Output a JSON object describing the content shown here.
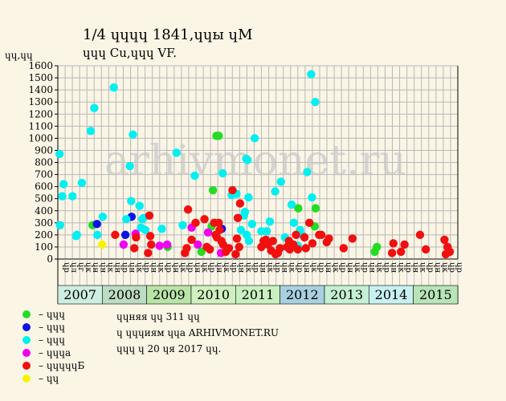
{
  "title": "1/4 ɥɥɥɥ 1841,ɥɥы ɥM",
  "subtitle": "ɥɥɥ Cu,ɥɥɥ VF.",
  "y_unit_label": "ɥɥ,ɥɥ",
  "watermark": "arhivmonet.ru",
  "footer": {
    "line1": "ɥɥняя ɥɥ 311 ɥɥ",
    "line2": "ɥ ɥɥɥиям ɥɥa ARHIVMONET.RU",
    "line3": "ɥɥɥ ɥ 20 ɥя 2017 ɥɥ."
  },
  "legend": [
    {
      "label": "– ɥɥɥ",
      "color": "#22dd22",
      "series": "green"
    },
    {
      "label": "– ɥɥɥ",
      "color": "#0a14e6",
      "series": "blue"
    },
    {
      "label": "– ɥɥɥ",
      "color": "#00f0f0",
      "series": "cyan"
    },
    {
      "label": "– ɥɥɥa",
      "color": "#f000f0",
      "series": "magenta"
    },
    {
      "label": "– ɥɥɥɥɥБ",
      "color": "#f01010",
      "series": "red"
    },
    {
      "label": "– ɥɥ",
      "color": "#f5f500",
      "series": "yellow"
    }
  ],
  "chart_data": {
    "type": "scatter",
    "y_ticks": [
      0,
      100,
      200,
      300,
      400,
      500,
      600,
      700,
      800,
      900,
      1000,
      1100,
      1200,
      1300,
      1400,
      1500,
      1600
    ],
    "ylim": [
      0,
      1600
    ],
    "xlim": [
      2007.0,
      2016.0
    ],
    "years": [
      {
        "label": "2007",
        "color": "#cdeee0"
      },
      {
        "label": "2008",
        "color": "#bcdcc4"
      },
      {
        "label": "2009",
        "color": "#b8e4a8"
      },
      {
        "label": "2010",
        "color": "#d0f0c0"
      },
      {
        "label": "2011",
        "color": "#c8f0c0"
      },
      {
        "label": "2012",
        "color": "#a8d0e0"
      },
      {
        "label": "2013",
        "color": "#c4f0d4"
      },
      {
        "label": "2014",
        "color": "#c8f0f0"
      },
      {
        "label": "2015",
        "color": "#b8e4b8"
      }
    ],
    "month_labels": [
      "ɥр",
      "ɥл",
      "ɥг",
      "ɥк",
      "ɥн",
      "ɥн",
      "ɥк",
      "ɥн",
      "ɥр",
      "ɥн",
      "ɥк",
      "ɥр",
      "ɥн",
      "ɥк",
      "ɥр",
      "ɥн",
      "ɥк",
      "ɥр",
      "ɥн",
      "ɥк",
      "ɥр",
      "ɥн",
      "ɥк",
      "ɥр",
      "ɥн",
      "ɥк",
      "ɥр",
      "ɥн",
      "ɥк",
      "ɥр",
      "ɥн",
      "ɥк",
      "ɥр",
      "ɥн",
      "ɥк",
      "ɥр",
      "ɥн",
      "ɥк",
      "ɥр",
      "ɥн",
      "ɥк",
      "ɥр",
      "ɥн",
      "ɥк",
      "ɥр",
      "ɥн",
      "ɥк",
      "ɥр",
      "ɥн",
      "ɥк",
      "ɥр",
      "ɥн",
      "ɥк",
      "ɥр",
      "ɥр"
    ],
    "series": [
      {
        "name": "green",
        "color": "#22dd22",
        "points": [
          [
            2007.78,
            280
          ],
          [
            2009.47,
            100
          ],
          [
            2010.23,
            60
          ],
          [
            2010.49,
            570
          ],
          [
            2010.57,
            1020
          ],
          [
            2010.62,
            1020
          ],
          [
            2010.46,
            270
          ],
          [
            2012.41,
            420
          ],
          [
            2012.78,
            270
          ],
          [
            2012.8,
            420
          ],
          [
            2014.13,
            60
          ],
          [
            2014.18,
            100
          ]
        ]
      },
      {
        "name": "blue",
        "color": "#0a14e6",
        "points": [
          [
            2007.88,
            290
          ],
          [
            2008.52,
            200
          ],
          [
            2008.66,
            350
          ],
          [
            2010.69,
            250
          ]
        ]
      },
      {
        "name": "cyan",
        "color": "#00f0f0",
        "points": [
          [
            2007.04,
            870
          ],
          [
            2007.1,
            520
          ],
          [
            2007.13,
            620
          ],
          [
            2007.33,
            520
          ],
          [
            2007.41,
            190
          ],
          [
            2007.43,
            200
          ],
          [
            2007.54,
            630
          ],
          [
            2007.74,
            1060
          ],
          [
            2007.82,
            1250
          ],
          [
            2007.89,
            200
          ],
          [
            2008.01,
            350
          ],
          [
            2008.26,
            1420
          ],
          [
            2008.54,
            330
          ],
          [
            2008.62,
            770
          ],
          [
            2008.65,
            480
          ],
          [
            2008.69,
            1030
          ],
          [
            2008.84,
            440
          ],
          [
            2008.87,
            260
          ],
          [
            2008.9,
            330
          ],
          [
            2008.93,
            340
          ],
          [
            2008.97,
            240
          ],
          [
            2009.34,
            250
          ],
          [
            2009.67,
            880
          ],
          [
            2009.81,
            280
          ],
          [
            2010.08,
            690
          ],
          [
            2010.71,
            710
          ],
          [
            2010.91,
            530
          ],
          [
            2011.02,
            540
          ],
          [
            2011.12,
            240
          ],
          [
            2011.19,
            360
          ],
          [
            2011.21,
            390
          ],
          [
            2011.24,
            830
          ],
          [
            2011.27,
            820
          ],
          [
            2011.29,
            510
          ],
          [
            2011.37,
            290
          ],
          [
            2011.43,
            1000
          ],
          [
            2011.58,
            230
          ],
          [
            2011.7,
            230
          ],
          [
            2011.77,
            310
          ],
          [
            2011.89,
            560
          ],
          [
            2012.02,
            640
          ],
          [
            2012.11,
            180
          ],
          [
            2012.26,
            450
          ],
          [
            2012.31,
            300
          ],
          [
            2012.45,
            240
          ],
          [
            2012.49,
            200
          ],
          [
            2012.61,
            720
          ],
          [
            2012.7,
            1530
          ],
          [
            2012.72,
            510
          ],
          [
            2012.79,
            1300
          ],
          [
            2007.05,
            280
          ],
          [
            2011.25,
            200
          ],
          [
            2011.3,
            150
          ],
          [
            2012.4,
            110
          ]
        ]
      },
      {
        "name": "magenta",
        "color": "#f000f0",
        "points": [
          [
            2008.48,
            120
          ],
          [
            2008.75,
            210
          ],
          [
            2009.29,
            110
          ],
          [
            2009.46,
            120
          ],
          [
            2010.01,
            260
          ],
          [
            2010.15,
            120
          ],
          [
            2010.38,
            220
          ],
          [
            2010.67,
            50
          ]
        ]
      },
      {
        "name": "red",
        "color": "#f01010",
        "points": [
          [
            2008.29,
            200
          ],
          [
            2008.72,
            90
          ],
          [
            2008.76,
            180
          ],
          [
            2009.03,
            50
          ],
          [
            2009.06,
            360
          ],
          [
            2009.08,
            190
          ],
          [
            2009.1,
            120
          ],
          [
            2009.86,
            50
          ],
          [
            2009.9,
            90
          ],
          [
            2009.93,
            410
          ],
          [
            2010.01,
            160
          ],
          [
            2010.1,
            300
          ],
          [
            2010.3,
            330
          ],
          [
            2010.35,
            100
          ],
          [
            2010.42,
            80
          ],
          [
            2010.52,
            300
          ],
          [
            2010.55,
            200
          ],
          [
            2010.58,
            180
          ],
          [
            2010.62,
            300
          ],
          [
            2010.64,
            240
          ],
          [
            2010.68,
            150
          ],
          [
            2010.72,
            120
          ],
          [
            2010.78,
            60
          ],
          [
            2010.85,
            90
          ],
          [
            2010.93,
            570
          ],
          [
            2011.0,
            40
          ],
          [
            2011.03,
            170
          ],
          [
            2011.05,
            340
          ],
          [
            2011.08,
            100
          ],
          [
            2011.1,
            460
          ],
          [
            2011.58,
            100
          ],
          [
            2011.63,
            150
          ],
          [
            2011.68,
            160
          ],
          [
            2011.73,
            120
          ],
          [
            2011.8,
            70
          ],
          [
            2011.84,
            150
          ],
          [
            2011.9,
            40
          ],
          [
            2011.95,
            50
          ],
          [
            2012.0,
            90
          ],
          [
            2012.16,
            100
          ],
          [
            2012.2,
            150
          ],
          [
            2012.22,
            80
          ],
          [
            2012.3,
            120
          ],
          [
            2012.36,
            200
          ],
          [
            2012.4,
            80
          ],
          [
            2012.55,
            180
          ],
          [
            2012.58,
            90
          ],
          [
            2012.66,
            300
          ],
          [
            2012.73,
            130
          ],
          [
            2012.88,
            200
          ],
          [
            2012.93,
            200
          ],
          [
            2013.05,
            140
          ],
          [
            2013.1,
            170
          ],
          [
            2013.43,
            90
          ],
          [
            2013.63,
            170
          ],
          [
            2014.52,
            50
          ],
          [
            2014.55,
            130
          ],
          [
            2014.72,
            60
          ],
          [
            2014.8,
            120
          ],
          [
            2015.15,
            200
          ],
          [
            2015.28,
            80
          ],
          [
            2015.7,
            160
          ],
          [
            2015.73,
            40
          ],
          [
            2015.77,
            100
          ],
          [
            2015.82,
            60
          ]
        ]
      },
      {
        "name": "yellow",
        "color": "#f5f500",
        "points": [
          [
            2008.0,
            120
          ]
        ]
      }
    ]
  }
}
